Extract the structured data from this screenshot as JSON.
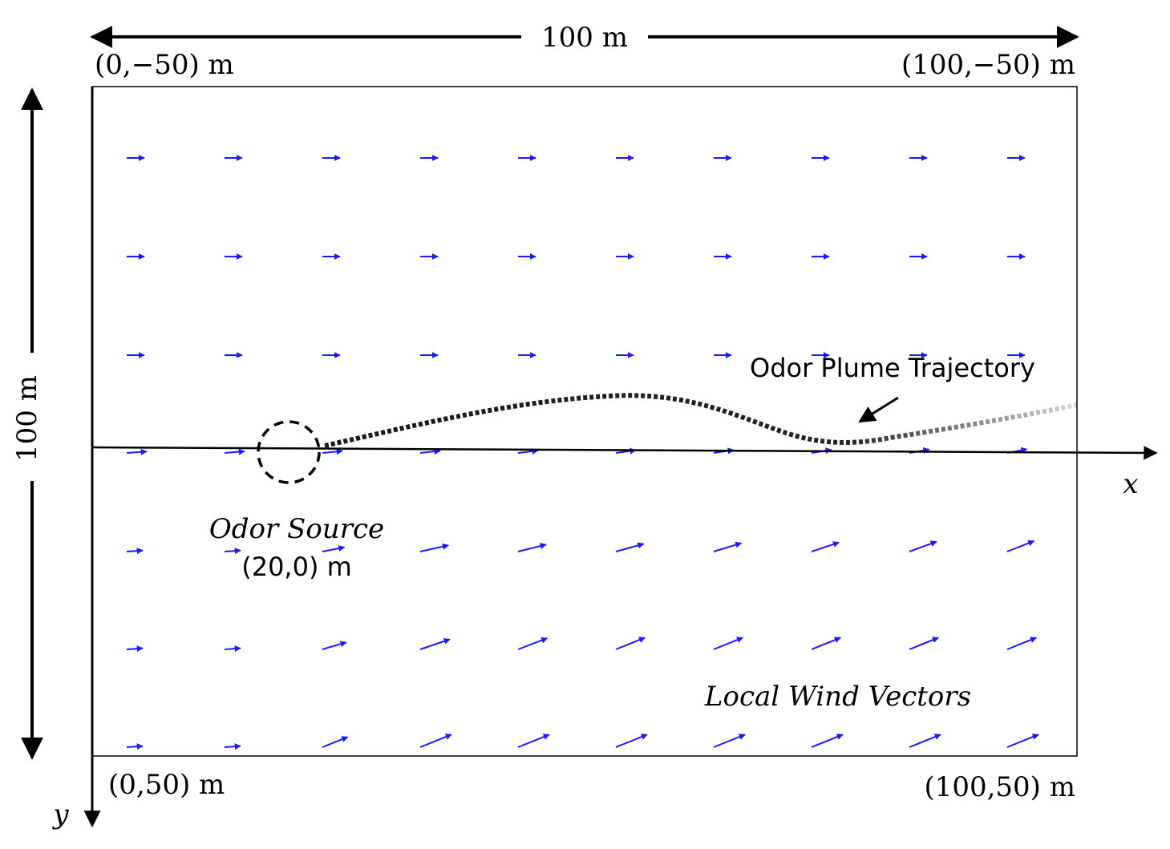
{
  "top_width_label": "100 m",
  "left_height_label": "100 m",
  "corners": {
    "top_left": "(0,−50) m",
    "top_right": "(100,−50) m",
    "bottom_left": "(0,50) m",
    "bottom_right": "(100,50) m"
  },
  "axes": {
    "x": "x",
    "y": "y"
  },
  "annotations": {
    "plume": "Odor Plume Trajectory",
    "source": "Odor Source",
    "source_position": "(20,0) m",
    "wind": "Local Wind Vectors"
  }
}
